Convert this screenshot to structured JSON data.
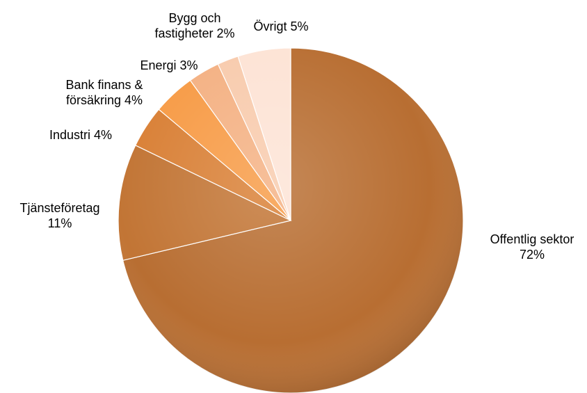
{
  "chart_data": {
    "type": "pie",
    "title": "",
    "start_angle_deg": 0,
    "direction": "clockwise",
    "legend": "none",
    "slices": [
      {
        "label_lines": [
          "Offentlig sektor",
          "72%"
        ],
        "value": 72,
        "color": "#B86E32"
      },
      {
        "label_lines": [
          "Tjänsteföretag",
          "11%"
        ],
        "value": 11,
        "color": "#C27535"
      },
      {
        "label_lines": [
          "Industri 4%"
        ],
        "value": 4,
        "color": "#D98036"
      },
      {
        "label_lines": [
          "Bank finans &",
          "försäkring 4%"
        ],
        "value": 4,
        "color": "#F79B46"
      },
      {
        "label_lines": [
          "Energi 3%"
        ],
        "value": 3,
        "color": "#F4B183"
      },
      {
        "label_lines": [
          "Bygg och",
          "fastigheter 2%"
        ],
        "value": 2,
        "color": "#F8CBAD"
      },
      {
        "label_lines": [
          "Övrigt 5%"
        ],
        "value": 5,
        "color": "#FDE3D5"
      }
    ]
  }
}
